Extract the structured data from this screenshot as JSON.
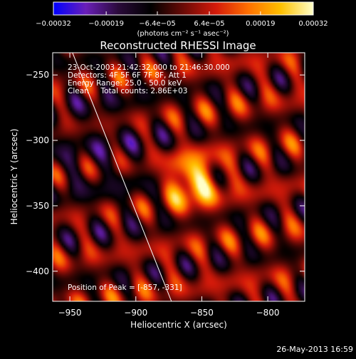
{
  "chart_data": {
    "type": "heatmap",
    "title": "Reconstructed RHESSI Image",
    "xlabel": "Heliocentric X (arcsec)",
    "ylabel": "Heliocentric Y (arcsec)",
    "xlim": [
      -963,
      -772
    ],
    "ylim": [
      -423,
      -233
    ],
    "x_ticks": [
      -950,
      -900,
      -850,
      -800
    ],
    "x_tick_labels": [
      "−950",
      "−900",
      "−850",
      "−800"
    ],
    "y_ticks": [
      -250,
      -300,
      -350,
      -400
    ],
    "y_tick_labels": [
      "−250",
      "−300",
      "−350",
      "−400"
    ],
    "colorbar": {
      "range": [
        -0.00032,
        0.00032
      ],
      "ticks": [
        -0.00032,
        -0.00019,
        -6.4e-05,
        6.4e-05,
        0.00019,
        0.00032
      ],
      "tick_labels": [
        "−0.00032",
        "−0.00019",
        "−6.4e−05",
        "6.4e−05",
        "0.00019",
        "0.00032"
      ],
      "units": "(photons cm⁻² s⁻¹ asec⁻²)",
      "colors": [
        "#0000ff",
        "#6a1fb8",
        "#2a0a3a",
        "#000000",
        "#6a0a06",
        "#d41a0a",
        "#ff7000",
        "#ffc000",
        "#ffffc8"
      ]
    },
    "annotations": [
      "23-Oct-2003 21:42:32.000 to 21:46:30.000",
      "Detectors: 4F 5F 6F 7F 8F, Att 1",
      "Energy Range: 25.0 - 50.0 keV",
      "Clean     Total counts: 2.86E+03"
    ],
    "peak": {
      "label": "Position of Peak = [-857, -331]",
      "x": -857,
      "y": -331
    },
    "limb_line": [
      [
        -948,
        -233
      ],
      [
        -873,
        -423
      ]
    ]
  },
  "footer": {
    "timestamp": "26-May-2013 16:59"
  }
}
